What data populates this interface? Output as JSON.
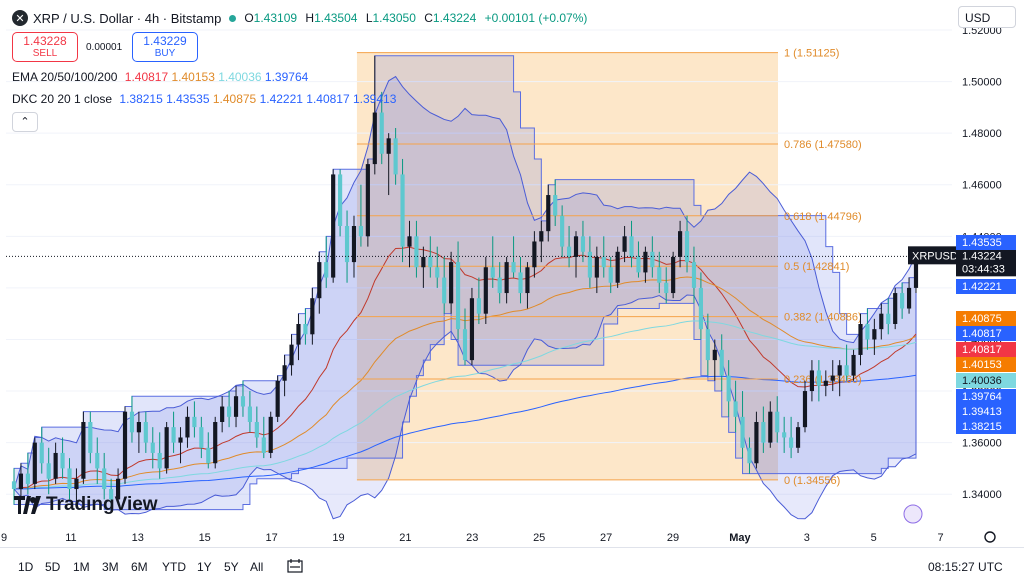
{
  "header": {
    "title": "XRP / U.S. Dollar · 4h · Bitstamp",
    "symbol_icon": "xrp-icon",
    "ohlc": [
      {
        "k": "O",
        "v": "1.43109"
      },
      {
        "k": "H",
        "v": "1.43504"
      },
      {
        "k": "L",
        "v": "1.43050"
      },
      {
        "k": "C",
        "v": "1.43224"
      }
    ],
    "change": "+0.00101 (+0.07%)"
  },
  "trade": {
    "sell_price": "1.43228",
    "sell_label": "SELL",
    "spread": "0.00001",
    "buy_price": "1.43229",
    "buy_label": "BUY"
  },
  "indicators": {
    "ema": {
      "name": "EMA 20/50/100/200",
      "values": [
        {
          "text": "1.40817",
          "color": "#f23645"
        },
        {
          "text": "1.40153",
          "color": "#e08b2a"
        },
        {
          "text": "1.40036",
          "color": "#7ed8e0"
        },
        {
          "text": "1.39764",
          "color": "#2962ff"
        }
      ]
    },
    "dkc": {
      "name": "DKC 20 20 1 close",
      "values": [
        {
          "text": "1.38215",
          "color": "#2962ff"
        },
        {
          "text": "1.43535",
          "color": "#2962ff"
        },
        {
          "text": "1.40875",
          "color": "#e08b2a"
        },
        {
          "text": "1.42221",
          "color": "#2962ff"
        },
        {
          "text": "1.40817",
          "color": "#2962ff"
        },
        {
          "text": "1.39413",
          "color": "#2962ff"
        }
      ]
    },
    "collapse_icon": "chevron-up-icon"
  },
  "currency": "USD",
  "colors": {
    "up": "#131722",
    "down": "#089981",
    "fib": "#f5a34a",
    "channel": "#5b6ee1",
    "bg_fib": "#fde3c0"
  },
  "chart_data": {
    "type": "candlestick",
    "symbol": "XRPUSD",
    "timeframe": "4h",
    "ylim": [
      1.33,
      1.52
    ],
    "y_ticks": [
      "1.34000",
      "1.36000",
      "1.38000",
      "1.40000",
      "1.42000",
      "1.44000",
      "1.46000",
      "1.48000",
      "1.50000",
      "1.52000"
    ],
    "x_ticks": [
      "9",
      "11",
      "13",
      "15",
      "17",
      "19",
      "21",
      "23",
      "25",
      "27",
      "29",
      "May",
      "3",
      "5",
      "7"
    ],
    "fib_levels": [
      {
        "ratio": "1",
        "value": 1.51125,
        "label": "1 (1.51125)"
      },
      {
        "ratio": "0.786",
        "value": 1.4758,
        "label": "0.786 (1.47580)"
      },
      {
        "ratio": "0.618",
        "value": 1.44796,
        "label": "0.618 (1.44796)"
      },
      {
        "ratio": "0.5",
        "value": 1.42841,
        "label": "0.5 (1.42841)"
      },
      {
        "ratio": "0.382",
        "value": 1.40886,
        "label": "0.382 (1.40886)"
      },
      {
        "ratio": "0.236",
        "value": 1.38466,
        "label": "0.236 (1.38466)"
      },
      {
        "ratio": "0",
        "value": 1.34556,
        "label": "0 (1.34556)"
      }
    ],
    "last_price": {
      "label": "XRPUSD",
      "value": "1.43224",
      "countdown": "03:44:33"
    },
    "price_tags": [
      {
        "value": "1.43535",
        "color": "#2962ff"
      },
      {
        "value": "1.42221",
        "color": "#2962ff"
      },
      {
        "value": "1.40875",
        "color": "#f57c00"
      },
      {
        "value": "1.40817",
        "color": "#2962ff"
      },
      {
        "value": "1.40817",
        "color": "#f23645"
      },
      {
        "value": "1.40153",
        "color": "#f57c00"
      },
      {
        "value": "1.40036",
        "color": "#7ed8e0"
      },
      {
        "value": "1.39764",
        "color": "#2962ff"
      },
      {
        "value": "1.39413",
        "color": "#2962ff"
      },
      {
        "value": "1.38215",
        "color": "#2962ff"
      }
    ],
    "candles": [
      [
        1.345,
        1.35,
        1.336,
        1.342
      ],
      [
        1.342,
        1.352,
        1.338,
        1.348
      ],
      [
        1.348,
        1.356,
        1.34,
        1.344
      ],
      [
        1.344,
        1.362,
        1.342,
        1.36
      ],
      [
        1.36,
        1.366,
        1.348,
        1.352
      ],
      [
        1.352,
        1.358,
        1.34,
        1.346
      ],
      [
        1.346,
        1.36,
        1.344,
        1.356
      ],
      [
        1.356,
        1.362,
        1.346,
        1.35
      ],
      [
        1.35,
        1.354,
        1.338,
        1.342
      ],
      [
        1.342,
        1.35,
        1.336,
        1.346
      ],
      [
        1.346,
        1.372,
        1.344,
        1.368
      ],
      [
        1.368,
        1.372,
        1.352,
        1.356
      ],
      [
        1.356,
        1.362,
        1.344,
        1.35
      ],
      [
        1.35,
        1.356,
        1.338,
        1.342
      ],
      [
        1.342,
        1.346,
        1.334,
        1.338
      ],
      [
        1.338,
        1.35,
        1.336,
        1.346
      ],
      [
        1.346,
        1.374,
        1.344,
        1.372
      ],
      [
        1.372,
        1.378,
        1.36,
        1.364
      ],
      [
        1.364,
        1.372,
        1.356,
        1.368
      ],
      [
        1.368,
        1.372,
        1.356,
        1.36
      ],
      [
        1.36,
        1.366,
        1.35,
        1.356
      ],
      [
        1.356,
        1.364,
        1.346,
        1.35
      ],
      [
        1.35,
        1.368,
        1.348,
        1.366
      ],
      [
        1.366,
        1.372,
        1.356,
        1.36
      ],
      [
        1.36,
        1.366,
        1.352,
        1.362
      ],
      [
        1.362,
        1.374,
        1.358,
        1.37
      ],
      [
        1.37,
        1.376,
        1.362,
        1.366
      ],
      [
        1.366,
        1.37,
        1.354,
        1.358
      ],
      [
        1.358,
        1.364,
        1.35,
        1.352
      ],
      [
        1.352,
        1.37,
        1.35,
        1.368
      ],
      [
        1.368,
        1.378,
        1.364,
        1.374
      ],
      [
        1.374,
        1.38,
        1.366,
        1.37
      ],
      [
        1.37,
        1.382,
        1.366,
        1.378
      ],
      [
        1.378,
        1.384,
        1.37,
        1.374
      ],
      [
        1.374,
        1.38,
        1.364,
        1.368
      ],
      [
        1.368,
        1.374,
        1.358,
        1.362
      ],
      [
        1.362,
        1.37,
        1.354,
        1.356
      ],
      [
        1.356,
        1.372,
        1.354,
        1.37
      ],
      [
        1.37,
        1.386,
        1.368,
        1.384
      ],
      [
        1.384,
        1.394,
        1.378,
        1.39
      ],
      [
        1.39,
        1.402,
        1.386,
        1.398
      ],
      [
        1.398,
        1.41,
        1.392,
        1.406
      ],
      [
        1.406,
        1.412,
        1.398,
        1.402
      ],
      [
        1.402,
        1.42,
        1.398,
        1.416
      ],
      [
        1.416,
        1.434,
        1.41,
        1.43
      ],
      [
        1.43,
        1.44,
        1.42,
        1.424
      ],
      [
        1.424,
        1.466,
        1.422,
        1.464
      ],
      [
        1.464,
        1.466,
        1.44,
        1.444
      ],
      [
        1.444,
        1.45,
        1.422,
        1.43
      ],
      [
        1.43,
        1.448,
        1.424,
        1.444
      ],
      [
        1.444,
        1.46,
        1.436,
        1.44
      ],
      [
        1.44,
        1.47,
        1.436,
        1.468
      ],
      [
        1.468,
        1.51,
        1.464,
        1.488
      ],
      [
        1.488,
        1.496,
        1.468,
        1.472
      ],
      [
        1.472,
        1.48,
        1.456,
        1.478
      ],
      [
        1.478,
        1.482,
        1.46,
        1.464
      ],
      [
        1.464,
        1.47,
        1.43,
        1.436
      ],
      [
        1.436,
        1.446,
        1.428,
        1.44
      ],
      [
        1.44,
        1.446,
        1.424,
        1.428
      ],
      [
        1.428,
        1.436,
        1.42,
        1.432
      ],
      [
        1.432,
        1.44,
        1.424,
        1.428
      ],
      [
        1.428,
        1.436,
        1.42,
        1.424
      ],
      [
        1.424,
        1.432,
        1.41,
        1.414
      ],
      [
        1.414,
        1.434,
        1.41,
        1.43
      ],
      [
        1.43,
        1.438,
        1.4,
        1.404
      ],
      [
        1.404,
        1.412,
        1.39,
        1.392
      ],
      [
        1.392,
        1.42,
        1.39,
        1.416
      ],
      [
        1.416,
        1.424,
        1.406,
        1.41
      ],
      [
        1.41,
        1.432,
        1.406,
        1.428
      ],
      [
        1.428,
        1.44,
        1.42,
        1.424
      ],
      [
        1.424,
        1.43,
        1.414,
        1.418
      ],
      [
        1.418,
        1.432,
        1.414,
        1.43
      ],
      [
        1.43,
        1.44,
        1.424,
        1.426
      ],
      [
        1.426,
        1.432,
        1.414,
        1.418
      ],
      [
        1.418,
        1.43,
        1.412,
        1.428
      ],
      [
        1.428,
        1.442,
        1.424,
        1.438
      ],
      [
        1.438,
        1.446,
        1.43,
        1.442
      ],
      [
        1.442,
        1.46,
        1.438,
        1.456
      ],
      [
        1.456,
        1.462,
        1.444,
        1.448
      ],
      [
        1.448,
        1.452,
        1.432,
        1.436
      ],
      [
        1.436,
        1.444,
        1.428,
        1.432
      ],
      [
        1.432,
        1.442,
        1.424,
        1.44
      ],
      [
        1.44,
        1.446,
        1.43,
        1.434
      ],
      [
        1.434,
        1.44,
        1.42,
        1.424
      ],
      [
        1.424,
        1.436,
        1.418,
        1.432
      ],
      [
        1.432,
        1.44,
        1.424,
        1.428
      ],
      [
        1.428,
        1.432,
        1.418,
        1.422
      ],
      [
        1.422,
        1.436,
        1.42,
        1.434
      ],
      [
        1.434,
        1.444,
        1.43,
        1.44
      ],
      [
        1.44,
        1.446,
        1.428,
        1.432
      ],
      [
        1.432,
        1.438,
        1.424,
        1.426
      ],
      [
        1.426,
        1.436,
        1.422,
        1.434
      ],
      [
        1.434,
        1.44,
        1.424,
        1.428
      ],
      [
        1.428,
        1.434,
        1.418,
        1.422
      ],
      [
        1.422,
        1.428,
        1.414,
        1.418
      ],
      [
        1.418,
        1.434,
        1.416,
        1.432
      ],
      [
        1.432,
        1.446,
        1.428,
        1.442
      ],
      [
        1.442,
        1.448,
        1.426,
        1.43
      ],
      [
        1.43,
        1.436,
        1.414,
        1.42
      ],
      [
        1.42,
        1.426,
        1.4,
        1.404
      ],
      [
        1.404,
        1.41,
        1.386,
        1.392
      ],
      [
        1.392,
        1.4,
        1.384,
        1.396
      ],
      [
        1.396,
        1.402,
        1.38,
        1.386
      ],
      [
        1.386,
        1.392,
        1.37,
        1.376
      ],
      [
        1.376,
        1.384,
        1.364,
        1.37
      ],
      [
        1.37,
        1.38,
        1.354,
        1.358
      ],
      [
        1.358,
        1.362,
        1.348,
        1.352
      ],
      [
        1.352,
        1.372,
        1.35,
        1.368
      ],
      [
        1.368,
        1.374,
        1.356,
        1.36
      ],
      [
        1.36,
        1.376,
        1.358,
        1.372
      ],
      [
        1.372,
        1.378,
        1.36,
        1.364
      ],
      [
        1.364,
        1.37,
        1.356,
        1.362
      ],
      [
        1.362,
        1.37,
        1.354,
        1.358
      ],
      [
        1.358,
        1.368,
        1.356,
        1.366
      ],
      [
        1.366,
        1.384,
        1.364,
        1.38
      ],
      [
        1.38,
        1.392,
        1.376,
        1.388
      ],
      [
        1.388,
        1.392,
        1.376,
        1.382
      ],
      [
        1.382,
        1.388,
        1.378,
        1.384
      ],
      [
        1.384,
        1.392,
        1.38,
        1.386
      ],
      [
        1.386,
        1.392,
        1.378,
        1.39
      ],
      [
        1.39,
        1.398,
        1.384,
        1.386
      ],
      [
        1.386,
        1.396,
        1.384,
        1.394
      ],
      [
        1.394,
        1.41,
        1.39,
        1.406
      ],
      [
        1.406,
        1.412,
        1.396,
        1.4
      ],
      [
        1.4,
        1.408,
        1.394,
        1.404
      ],
      [
        1.404,
        1.414,
        1.4,
        1.41
      ],
      [
        1.41,
        1.416,
        1.402,
        1.406
      ],
      [
        1.406,
        1.42,
        1.404,
        1.418
      ],
      [
        1.418,
        1.422,
        1.408,
        1.412
      ],
      [
        1.412,
        1.424,
        1.41,
        1.42
      ],
      [
        1.42,
        1.436,
        1.418,
        1.432
      ]
    ]
  },
  "timeframes": [
    "1D",
    "5D",
    "1M",
    "3M",
    "6M",
    "YTD",
    "1Y",
    "5Y",
    "All"
  ],
  "calendar_icon": "calendar-range-icon",
  "utc_time": "08:15:27 UTC",
  "logo": "TradingView",
  "settings_icon": "gear-icon",
  "magic_icon": "sparkle-icon"
}
